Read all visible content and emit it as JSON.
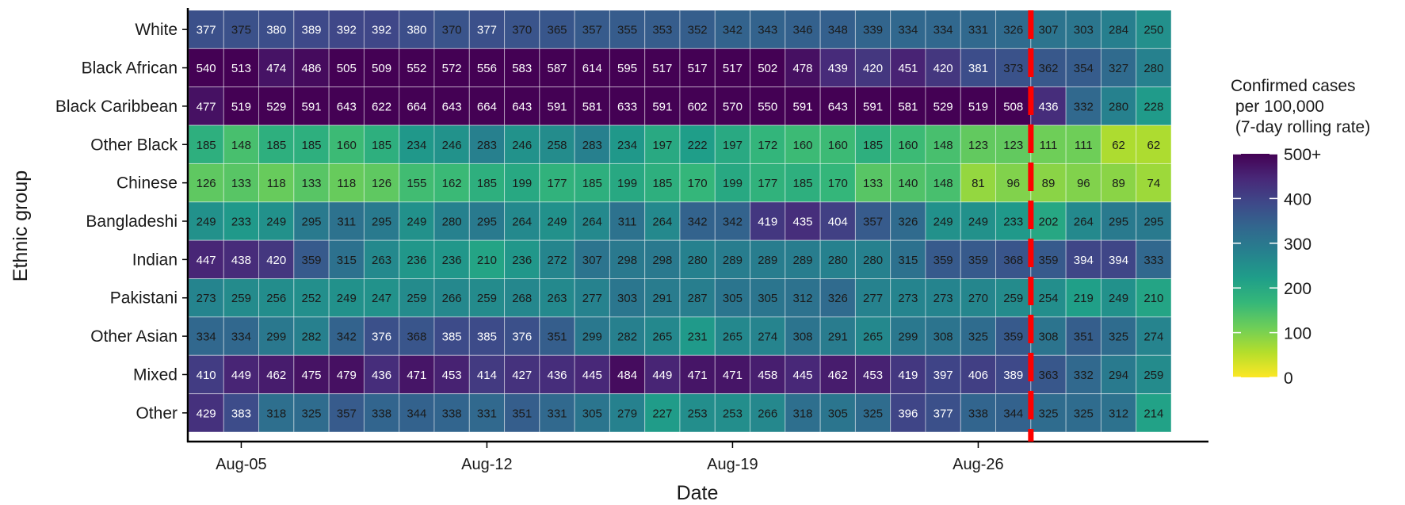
{
  "chart_data": {
    "type": "heatmap",
    "xlabel": "Date",
    "ylabel": "Ethnic group",
    "x_tick_labels": [
      {
        "label": "Aug-05",
        "at": "Aug-05"
      },
      {
        "label": "Aug-12",
        "at": "Aug-12"
      },
      {
        "label": "Aug-19",
        "at": "Aug-19"
      },
      {
        "label": "Aug-26",
        "at": "Aug-26"
      }
    ],
    "x": [
      "Aug-04",
      "Aug-05",
      "Aug-06",
      "Aug-07",
      "Aug-08",
      "Aug-09",
      "Aug-10",
      "Aug-11",
      "Aug-12",
      "Aug-13",
      "Aug-14",
      "Aug-15",
      "Aug-16",
      "Aug-17",
      "Aug-18",
      "Aug-19",
      "Aug-20",
      "Aug-21",
      "Aug-22",
      "Aug-23",
      "Aug-24",
      "Aug-25",
      "Aug-26",
      "Aug-27",
      "Aug-28",
      "Aug-29",
      "Aug-30",
      "Aug-31"
    ],
    "y": [
      "White",
      "Black African",
      "Black Caribbean",
      "Other Black",
      "Chinese",
      "Bangladeshi",
      "Indian",
      "Pakistani",
      "Other Asian",
      "Mixed",
      "Other"
    ],
    "values": [
      [
        377,
        375,
        380,
        389,
        392,
        392,
        380,
        370,
        377,
        370,
        365,
        357,
        355,
        353,
        352,
        342,
        343,
        346,
        348,
        339,
        334,
        334,
        331,
        326,
        307,
        303,
        284,
        250
      ],
      [
        540,
        513,
        474,
        486,
        505,
        509,
        552,
        572,
        556,
        583,
        587,
        614,
        595,
        517,
        517,
        517,
        502,
        478,
        439,
        420,
        451,
        420,
        381,
        373,
        362,
        354,
        327,
        280
      ],
      [
        477,
        519,
        529,
        591,
        643,
        622,
        664,
        643,
        664,
        643,
        591,
        581,
        633,
        591,
        602,
        570,
        550,
        591,
        643,
        591,
        581,
        529,
        519,
        508,
        436,
        332,
        280,
        228
      ],
      [
        185,
        148,
        185,
        185,
        160,
        185,
        234,
        246,
        283,
        246,
        258,
        283,
        234,
        197,
        222,
        197,
        172,
        160,
        160,
        185,
        160,
        148,
        123,
        123,
        111,
        111,
        62,
        62
      ],
      [
        126,
        133,
        118,
        133,
        118,
        126,
        155,
        162,
        185,
        199,
        177,
        185,
        199,
        185,
        170,
        199,
        177,
        185,
        170,
        133,
        140,
        148,
        81,
        96,
        89,
        96,
        89,
        74
      ],
      [
        249,
        233,
        249,
        295,
        311,
        295,
        249,
        280,
        295,
        264,
        249,
        264,
        311,
        264,
        342,
        342,
        419,
        435,
        404,
        357,
        326,
        249,
        249,
        233,
        202,
        264,
        295,
        295
      ],
      [
        447,
        438,
        420,
        359,
        315,
        263,
        236,
        236,
        210,
        236,
        272,
        307,
        298,
        298,
        280,
        289,
        289,
        289,
        280,
        280,
        315,
        359,
        359,
        368,
        359,
        394,
        394,
        333
      ],
      [
        273,
        259,
        256,
        252,
        249,
        247,
        259,
        266,
        259,
        268,
        263,
        277,
        303,
        291,
        287,
        305,
        305,
        312,
        326,
        277,
        273,
        273,
        270,
        259,
        254,
        219,
        249,
        210
      ],
      [
        334,
        334,
        299,
        282,
        342,
        376,
        368,
        385,
        385,
        376,
        351,
        299,
        282,
        265,
        231,
        265,
        274,
        308,
        291,
        265,
        299,
        308,
        325,
        359,
        308,
        351,
        325,
        274
      ],
      [
        410,
        449,
        462,
        475,
        479,
        436,
        471,
        453,
        414,
        427,
        436,
        445,
        484,
        449,
        471,
        471,
        458,
        445,
        462,
        453,
        419,
        397,
        406,
        389,
        363,
        332,
        294,
        259
      ],
      [
        429,
        383,
        318,
        325,
        357,
        338,
        344,
        338,
        331,
        351,
        331,
        305,
        279,
        227,
        253,
        253,
        266,
        318,
        305,
        325,
        396,
        377,
        338,
        344,
        325,
        325,
        312,
        214
      ]
    ],
    "colorscale": "viridis (reversed)",
    "color_range": [
      0,
      500
    ],
    "legend": {
      "title_lines": [
        "Confirmed cases",
        " per 100,000",
        " (7-day rolling rate)"
      ],
      "ticks": [
        {
          "label": "0",
          "value": 0
        },
        {
          "label": "100",
          "value": 100
        },
        {
          "label": "200",
          "value": 200
        },
        {
          "label": "300",
          "value": 300
        },
        {
          "label": "400",
          "value": 400
        },
        {
          "label": "500+",
          "value": 500
        }
      ],
      "position": "right"
    },
    "reference_line": {
      "between": [
        "Aug-27",
        "Aug-28"
      ],
      "color": "#ff0000",
      "style": "dashed"
    },
    "grid": false
  }
}
